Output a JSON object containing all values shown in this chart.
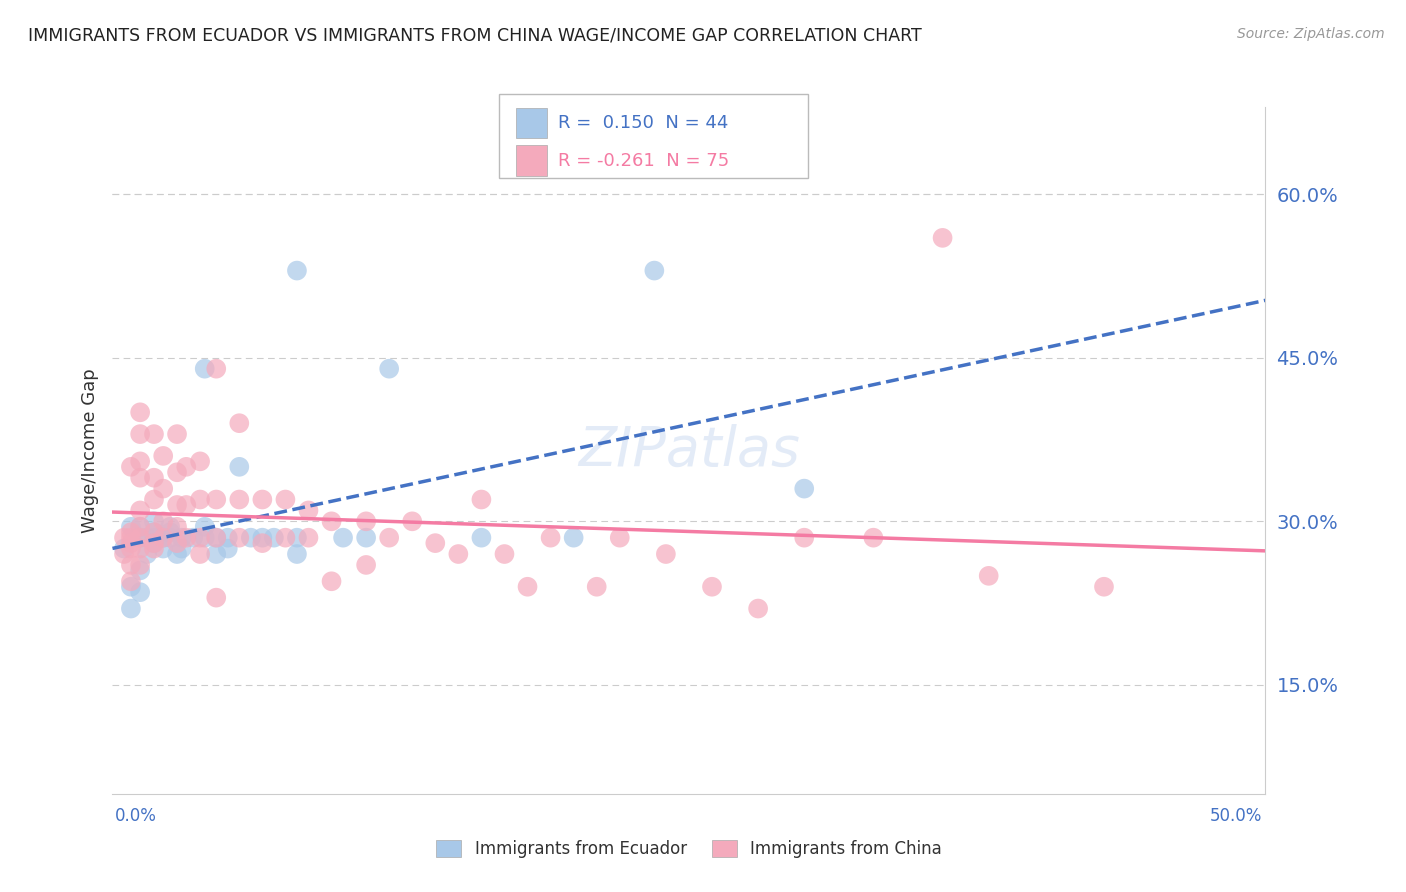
{
  "title": "IMMIGRANTS FROM ECUADOR VS IMMIGRANTS FROM CHINA WAGE/INCOME GAP CORRELATION CHART",
  "source": "Source: ZipAtlas.com",
  "ylabel": "Wage/Income Gap",
  "ytick_labels": [
    "15.0%",
    "30.0%",
    "45.0%",
    "60.0%"
  ],
  "ytick_values": [
    0.15,
    0.3,
    0.45,
    0.6
  ],
  "xlim": [
    0.0,
    0.5
  ],
  "ylim": [
    0.05,
    0.68
  ],
  "ecuador_color": "#A8C8E8",
  "china_color": "#F4AABC",
  "ecuador_line_color": "#4472C4",
  "china_line_color": "#F47BA3",
  "background_color": "#FFFFFF",
  "ecuador_points": [
    [
      0.005,
      0.275
    ],
    [
      0.008,
      0.295
    ],
    [
      0.008,
      0.24
    ],
    [
      0.008,
      0.22
    ],
    [
      0.012,
      0.285
    ],
    [
      0.012,
      0.295
    ],
    [
      0.012,
      0.255
    ],
    [
      0.012,
      0.235
    ],
    [
      0.015,
      0.285
    ],
    [
      0.015,
      0.27
    ],
    [
      0.018,
      0.285
    ],
    [
      0.018,
      0.3
    ],
    [
      0.018,
      0.29
    ],
    [
      0.018,
      0.28
    ],
    [
      0.022,
      0.285
    ],
    [
      0.022,
      0.275
    ],
    [
      0.025,
      0.285
    ],
    [
      0.025,
      0.29
    ],
    [
      0.025,
      0.295
    ],
    [
      0.028,
      0.27
    ],
    [
      0.03,
      0.285
    ],
    [
      0.03,
      0.275
    ],
    [
      0.035,
      0.285
    ],
    [
      0.04,
      0.285
    ],
    [
      0.04,
      0.295
    ],
    [
      0.04,
      0.44
    ],
    [
      0.045,
      0.285
    ],
    [
      0.045,
      0.27
    ],
    [
      0.05,
      0.285
    ],
    [
      0.05,
      0.275
    ],
    [
      0.055,
      0.35
    ],
    [
      0.06,
      0.285
    ],
    [
      0.065,
      0.285
    ],
    [
      0.07,
      0.285
    ],
    [
      0.08,
      0.285
    ],
    [
      0.08,
      0.27
    ],
    [
      0.08,
      0.53
    ],
    [
      0.1,
      0.285
    ],
    [
      0.11,
      0.285
    ],
    [
      0.12,
      0.44
    ],
    [
      0.16,
      0.285
    ],
    [
      0.2,
      0.285
    ],
    [
      0.235,
      0.53
    ],
    [
      0.3,
      0.33
    ]
  ],
  "china_points": [
    [
      0.005,
      0.285
    ],
    [
      0.005,
      0.27
    ],
    [
      0.008,
      0.35
    ],
    [
      0.008,
      0.29
    ],
    [
      0.008,
      0.285
    ],
    [
      0.008,
      0.28
    ],
    [
      0.008,
      0.275
    ],
    [
      0.008,
      0.26
    ],
    [
      0.008,
      0.245
    ],
    [
      0.012,
      0.4
    ],
    [
      0.012,
      0.38
    ],
    [
      0.012,
      0.355
    ],
    [
      0.012,
      0.34
    ],
    [
      0.012,
      0.31
    ],
    [
      0.012,
      0.295
    ],
    [
      0.012,
      0.285
    ],
    [
      0.012,
      0.275
    ],
    [
      0.012,
      0.26
    ],
    [
      0.018,
      0.38
    ],
    [
      0.018,
      0.34
    ],
    [
      0.018,
      0.32
    ],
    [
      0.018,
      0.29
    ],
    [
      0.018,
      0.28
    ],
    [
      0.018,
      0.275
    ],
    [
      0.022,
      0.36
    ],
    [
      0.022,
      0.33
    ],
    [
      0.022,
      0.3
    ],
    [
      0.022,
      0.285
    ],
    [
      0.028,
      0.38
    ],
    [
      0.028,
      0.345
    ],
    [
      0.028,
      0.315
    ],
    [
      0.028,
      0.295
    ],
    [
      0.028,
      0.28
    ],
    [
      0.032,
      0.35
    ],
    [
      0.032,
      0.315
    ],
    [
      0.032,
      0.285
    ],
    [
      0.038,
      0.355
    ],
    [
      0.038,
      0.32
    ],
    [
      0.038,
      0.285
    ],
    [
      0.038,
      0.27
    ],
    [
      0.045,
      0.44
    ],
    [
      0.045,
      0.32
    ],
    [
      0.045,
      0.285
    ],
    [
      0.045,
      0.23
    ],
    [
      0.055,
      0.39
    ],
    [
      0.055,
      0.32
    ],
    [
      0.055,
      0.285
    ],
    [
      0.065,
      0.32
    ],
    [
      0.065,
      0.28
    ],
    [
      0.075,
      0.32
    ],
    [
      0.075,
      0.285
    ],
    [
      0.085,
      0.31
    ],
    [
      0.085,
      0.285
    ],
    [
      0.095,
      0.3
    ],
    [
      0.095,
      0.245
    ],
    [
      0.11,
      0.3
    ],
    [
      0.11,
      0.26
    ],
    [
      0.12,
      0.285
    ],
    [
      0.13,
      0.3
    ],
    [
      0.14,
      0.28
    ],
    [
      0.15,
      0.27
    ],
    [
      0.16,
      0.32
    ],
    [
      0.17,
      0.27
    ],
    [
      0.18,
      0.24
    ],
    [
      0.19,
      0.285
    ],
    [
      0.21,
      0.24
    ],
    [
      0.22,
      0.285
    ],
    [
      0.24,
      0.27
    ],
    [
      0.26,
      0.24
    ],
    [
      0.28,
      0.22
    ],
    [
      0.3,
      0.285
    ],
    [
      0.33,
      0.285
    ],
    [
      0.36,
      0.56
    ],
    [
      0.38,
      0.25
    ],
    [
      0.43,
      0.24
    ]
  ]
}
